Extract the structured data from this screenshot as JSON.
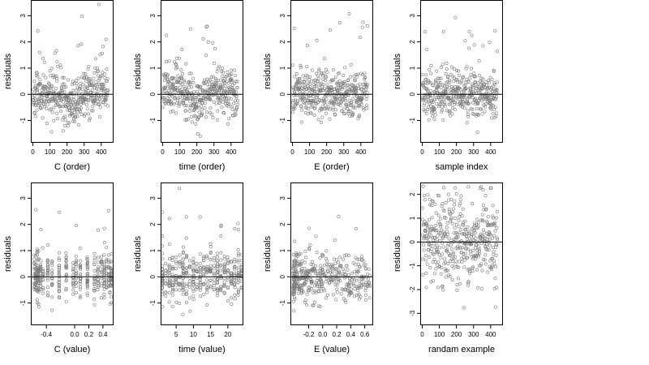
{
  "figure": {
    "background": "#ffffff",
    "point_color": "#7a7a7a",
    "line_color": "#000000"
  },
  "chart_data": [
    {
      "id": "p1",
      "type": "scatter",
      "title": "",
      "xlabel": "C (order)",
      "ylabel": "residuals",
      "xlim": [
        -12,
        472
      ],
      "ylim": [
        -1.85,
        3.6
      ],
      "xticks": [
        0,
        100,
        200,
        300,
        400
      ],
      "xtick_labels": [
        "0",
        "100",
        "200",
        "300",
        "400"
      ],
      "yticks": [
        -1,
        0,
        1,
        2,
        3
      ],
      "ytick_labels": [
        "-1",
        "0",
        "1",
        "2",
        "3"
      ],
      "hline": 0,
      "n_points": 440,
      "pattern": "order_decline",
      "seed": 11
    },
    {
      "id": "p2",
      "type": "scatter",
      "title": "",
      "xlabel": "time (order)",
      "ylabel": "residuals",
      "xlim": [
        -12,
        472
      ],
      "ylim": [
        -1.85,
        3.6
      ],
      "xticks": [
        0,
        100,
        200,
        300,
        400
      ],
      "xtick_labels": [
        "0",
        "100",
        "200",
        "300",
        "400"
      ],
      "yticks": [
        -1,
        0,
        1,
        2,
        3
      ],
      "ytick_labels": [
        "-1",
        "0",
        "1",
        "2",
        "3"
      ],
      "hline": 0,
      "n_points": 440,
      "pattern": "order_wave",
      "seed": 23
    },
    {
      "id": "p3",
      "type": "scatter",
      "title": "",
      "xlabel": "E (order)",
      "ylabel": "residuals",
      "xlim": [
        -12,
        472
      ],
      "ylim": [
        -1.85,
        3.6
      ],
      "xticks": [
        0,
        100,
        200,
        300,
        400
      ],
      "xtick_labels": [
        "0",
        "100",
        "200",
        "300",
        "400"
      ],
      "yticks": [
        -1,
        0,
        1,
        2,
        3
      ],
      "ytick_labels": [
        "-1",
        "0",
        "1",
        "2",
        "3"
      ],
      "hline": 0,
      "n_points": 440,
      "pattern": "order_flat",
      "seed": 37
    },
    {
      "id": "p4",
      "type": "scatter",
      "title": "",
      "xlabel": "sample index",
      "ylabel": "residuals",
      "xlim": [
        -12,
        472
      ],
      "ylim": [
        -1.85,
        3.6
      ],
      "xticks": [
        0,
        100,
        200,
        300,
        400
      ],
      "xtick_labels": [
        "0",
        "100",
        "200",
        "300",
        "400"
      ],
      "yticks": [
        -1,
        0,
        1,
        2,
        3
      ],
      "ytick_labels": [
        "-1",
        "0",
        "1",
        "2",
        "3"
      ],
      "hline": 0,
      "n_points": 440,
      "pattern": "order_flat",
      "seed": 41
    },
    {
      "id": "p5",
      "type": "scatter",
      "title": "",
      "xlabel": "C (value)",
      "ylabel": "residuals",
      "xlim": [
        -0.62,
        0.55
      ],
      "ylim": [
        -1.85,
        3.6
      ],
      "xticks": [
        -0.4,
        0,
        0.2,
        0.4
      ],
      "xtick_labels": [
        "-0.4",
        "0.0",
        "0.2",
        "0.4"
      ],
      "yticks": [
        -1,
        0,
        1,
        2,
        3
      ],
      "ytick_labels": [
        "-1",
        "0",
        "1",
        "2",
        "3"
      ],
      "hline": 0,
      "n_points": 420,
      "pattern": "value_columns",
      "columns": [
        -0.57,
        -0.55,
        -0.53,
        -0.51,
        -0.48,
        -0.45,
        -0.38,
        -0.32,
        -0.22,
        -0.12,
        -0.02,
        0.02,
        0.08,
        0.18,
        0.28,
        0.33,
        0.38,
        0.42,
        0.45,
        0.48,
        0.5,
        0.52
      ],
      "seed": 53
    },
    {
      "id": "p6",
      "type": "scatter",
      "title": "",
      "xlabel": "time (value)",
      "ylabel": "residuals",
      "xlim": [
        0.5,
        24.5
      ],
      "ylim": [
        -1.85,
        3.6
      ],
      "xticks": [
        5,
        10,
        15,
        20
      ],
      "xtick_labels": [
        "5",
        "10",
        "15",
        "20"
      ],
      "yticks": [
        -1,
        0,
        1,
        2,
        3
      ],
      "ytick_labels": [
        "-1",
        "0",
        "1",
        "2",
        "3"
      ],
      "hline": 0,
      "n_points": 430,
      "pattern": "value_columns",
      "columns": [
        1,
        2,
        3,
        4,
        5,
        6,
        7,
        8,
        9,
        10,
        11,
        12,
        13,
        14,
        15,
        16,
        17,
        18,
        19,
        20,
        21,
        22,
        23,
        24
      ],
      "seed": 67
    },
    {
      "id": "p7",
      "type": "scatter",
      "title": "",
      "xlabel": "E (value)",
      "ylabel": "residuals",
      "xlim": [
        -0.46,
        0.72
      ],
      "ylim": [
        -1.85,
        3.6
      ],
      "xticks": [
        -0.2,
        0,
        0.2,
        0.4,
        0.6
      ],
      "xtick_labels": [
        "-0.2",
        "0.0",
        "0.2",
        "0.4",
        "0.6"
      ],
      "yticks": [
        -1,
        0,
        1,
        2,
        3
      ],
      "ytick_labels": [
        "-1",
        "0",
        "1",
        "2",
        "3"
      ],
      "hline": 0,
      "n_points": 430,
      "pattern": "value_skewed",
      "seed": 79
    },
    {
      "id": "p8",
      "type": "scatter",
      "title": "",
      "xlabel": "randam example",
      "ylabel": "residuals",
      "xlim": [
        -12,
        472
      ],
      "ylim": [
        -3.5,
        2.5
      ],
      "xticks": [
        0,
        100,
        200,
        300,
        400
      ],
      "xtick_labels": [
        "0",
        "100",
        "200",
        "300",
        "400"
      ],
      "yticks": [
        -3,
        -2,
        -1,
        0,
        1,
        2
      ],
      "ytick_labels": [
        "-3",
        "-2",
        "-1",
        "0",
        "1",
        "2"
      ],
      "hline": 0,
      "n_points": 440,
      "pattern": "order_random",
      "seed": 97
    }
  ]
}
